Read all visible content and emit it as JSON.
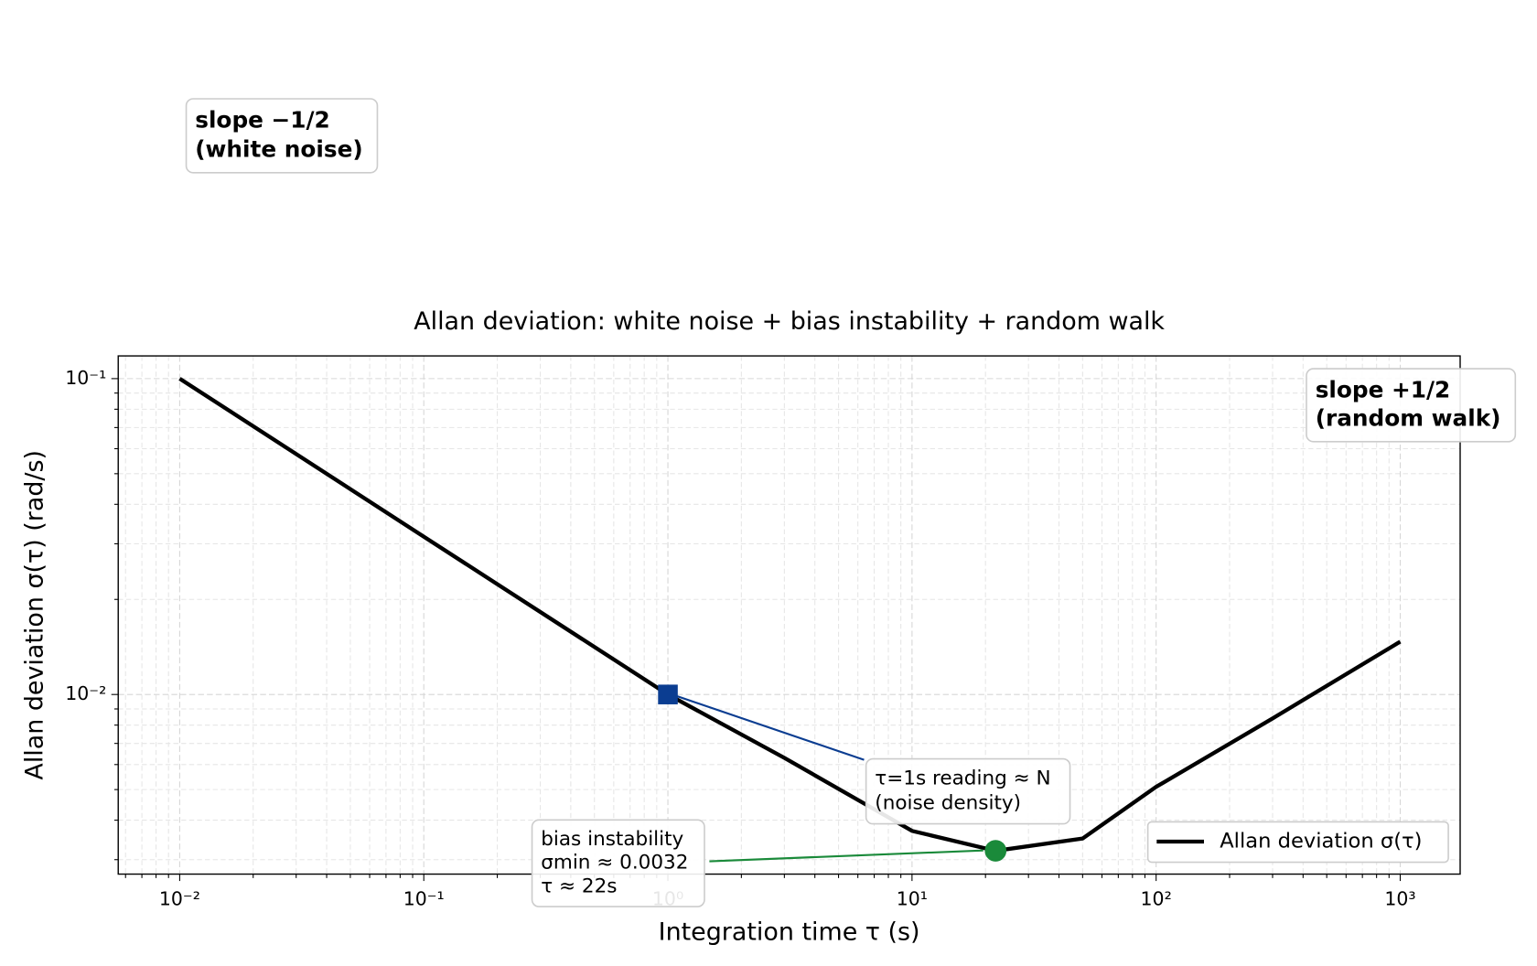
{
  "chart_data": {
    "type": "line",
    "title": "Allan deviation: white noise + bias instability + random walk",
    "xlabel": "Integration time τ (s)",
    "ylabel": "Allan deviation σ(τ) (rad/s)",
    "xscale": "log",
    "yscale": "log",
    "xlim": [
      0.0056,
      1760
    ],
    "ylim": [
      0.0027,
      0.118
    ],
    "xticks": [
      {
        "value": 0.01,
        "label": "10⁻²"
      },
      {
        "value": 0.1,
        "label": "10⁻¹"
      },
      {
        "value": 1,
        "label": "10⁰"
      },
      {
        "value": 10,
        "label": "10¹"
      },
      {
        "value": 100,
        "label": "10²"
      },
      {
        "value": 1000,
        "label": "10³"
      }
    ],
    "yticks": [
      {
        "value": 0.01,
        "label": "10⁻²"
      },
      {
        "value": 0.1,
        "label": "10⁻¹"
      }
    ],
    "xminorticks": [
      0.006,
      0.007,
      0.008,
      0.009,
      0.02,
      0.03,
      0.04,
      0.05,
      0.06,
      0.07,
      0.08,
      0.09,
      0.2,
      0.3,
      0.4,
      0.5,
      0.6,
      0.7,
      0.8,
      0.9,
      2,
      3,
      4,
      5,
      6,
      7,
      8,
      9,
      20,
      30,
      40,
      50,
      60,
      70,
      80,
      90,
      200,
      300,
      400,
      500,
      600,
      700,
      800,
      900
    ],
    "yminorticks": [
      0.003,
      0.004,
      0.005,
      0.006,
      0.007,
      0.008,
      0.009,
      0.02,
      0.03,
      0.04,
      0.05,
      0.06,
      0.07,
      0.08,
      0.09
    ],
    "grid": true,
    "legend": "lower right",
    "series": [
      {
        "name": "Allan deviation σ(τ)",
        "color": "#000000",
        "x": [
          0.01,
          0.1,
          1,
          3,
          10,
          22,
          50,
          100,
          300,
          1000
        ],
        "values": [
          0.1,
          0.0316,
          0.01,
          0.0063,
          0.0037,
          0.0032,
          0.0035,
          0.0051,
          0.0084,
          0.0147
        ]
      }
    ],
    "points": [
      {
        "x": 1,
        "value": 0.01,
        "color": "#0b3d91",
        "marker": "square"
      },
      {
        "x": 22,
        "value": 0.0032,
        "color": "#1a8a3a",
        "marker": "circle"
      }
    ],
    "annotations": [
      {
        "lines": [
          "slope −1/2",
          "(white noise)"
        ],
        "color": "#0b3d91"
      },
      {
        "lines": [
          "slope +1/2",
          "(random walk)"
        ],
        "color": "#8b1a1a"
      },
      {
        "lines": [
          "τ=1s reading ≈ N",
          "(noise density)"
        ],
        "color": "#0b3d91"
      },
      {
        "lines": [
          "bias instability",
          "σmin ≈ 0.0032",
          "τ ≈ 22s"
        ],
        "color": "#1a8a3a"
      }
    ]
  }
}
